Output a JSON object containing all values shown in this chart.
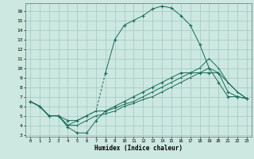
{
  "xlabel": "Humidex (Indice chaleur)",
  "bg_color": "#cce8e0",
  "line_color": "#1a6b5a",
  "grid_color": "#a0c8c0",
  "xlim": [
    -0.5,
    23.5
  ],
  "ylim": [
    2.8,
    16.8
  ],
  "xticks": [
    0,
    1,
    2,
    3,
    4,
    5,
    6,
    7,
    8,
    9,
    10,
    11,
    12,
    13,
    14,
    15,
    16,
    17,
    18,
    19,
    20,
    21,
    22,
    23
  ],
  "yticks": [
    3,
    4,
    5,
    6,
    7,
    8,
    9,
    10,
    11,
    12,
    13,
    14,
    15,
    16
  ],
  "series1_x": [
    0,
    1,
    2,
    3,
    4,
    5,
    6,
    7,
    8,
    9,
    10,
    11,
    12,
    13,
    14,
    15,
    16,
    17,
    18,
    19,
    20,
    21,
    22,
    23
  ],
  "series1_y": [
    6.5,
    6.0,
    5.0,
    5.0,
    4.5,
    4.5,
    5.0,
    5.5,
    9.5,
    13.0,
    14.5,
    15.0,
    15.5,
    16.2,
    16.5,
    16.3,
    15.5,
    14.5,
    12.5,
    10.0,
    8.5,
    7.0,
    7.0,
    6.8
  ],
  "series1_dash_start": 6,
  "series1_dash_end": 8,
  "series2_x": [
    0,
    1,
    2,
    3,
    4,
    5,
    6,
    7,
    8,
    9,
    10,
    11,
    12,
    13,
    14,
    15,
    16,
    17,
    18,
    19,
    20,
    21,
    22,
    23
  ],
  "series2_y": [
    6.5,
    6.0,
    5.0,
    5.0,
    3.8,
    3.2,
    3.2,
    4.5,
    5.5,
    6.0,
    6.5,
    7.0,
    7.5,
    8.0,
    8.5,
    9.0,
    9.5,
    9.5,
    9.5,
    9.5,
    9.5,
    7.5,
    7.0,
    6.8
  ],
  "series3_x": [
    0,
    1,
    2,
    3,
    4,
    5,
    6,
    7,
    8,
    9,
    10,
    11,
    12,
    13,
    14,
    15,
    16,
    17,
    18,
    19,
    20,
    21,
    22,
    23
  ],
  "series3_y": [
    6.5,
    6.0,
    5.0,
    5.0,
    4.0,
    4.5,
    5.0,
    5.5,
    5.5,
    5.8,
    6.2,
    6.5,
    7.0,
    7.5,
    8.0,
    8.5,
    9.0,
    9.5,
    10.0,
    11.0,
    10.0,
    8.5,
    7.5,
    6.8
  ],
  "series4_x": [
    0,
    1,
    2,
    3,
    4,
    5,
    6,
    7,
    8,
    9,
    10,
    11,
    12,
    13,
    14,
    15,
    16,
    17,
    18,
    19,
    20,
    21,
    22,
    23
  ],
  "series4_y": [
    6.5,
    6.0,
    5.0,
    5.0,
    4.0,
    4.0,
    4.5,
    5.0,
    5.2,
    5.5,
    6.0,
    6.3,
    6.7,
    7.0,
    7.5,
    8.0,
    8.5,
    9.0,
    9.5,
    10.0,
    9.5,
    8.5,
    7.5,
    6.8
  ]
}
